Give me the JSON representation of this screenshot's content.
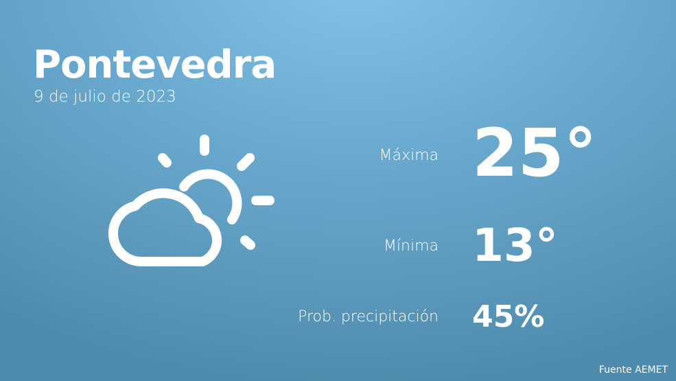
{
  "city": "Pontevedra",
  "date": "9 de julio de 2023",
  "weather_icon": "partly-cloudy-icon",
  "max_label": "Máxima",
  "max_value": "25°",
  "min_label": "Mínima",
  "min_value": "13°",
  "precip_label": "Prob. precipitación",
  "precip_value": "45%",
  "source": "Fuente AEMET"
}
